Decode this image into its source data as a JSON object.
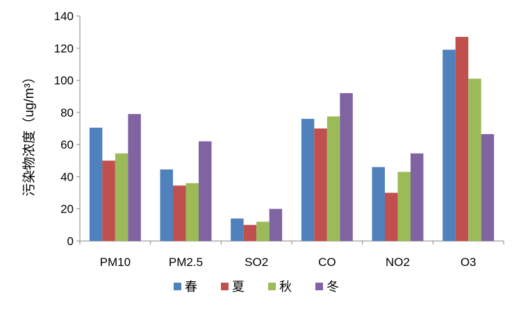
{
  "chart_data": {
    "type": "bar",
    "title": "",
    "xlabel": "",
    "ylabel": "污染物浓度（ug/m³）",
    "ylim": [
      0,
      140
    ],
    "yticks": [
      0,
      20,
      40,
      60,
      80,
      100,
      120,
      140
    ],
    "categories": [
      "PM10",
      "PM2.5",
      "SO2",
      "CO",
      "NO2",
      "O3"
    ],
    "series": [
      {
        "name": "春",
        "color": "#4f81bd",
        "values": [
          70.5,
          44.5,
          14,
          76,
          46,
          119
        ]
      },
      {
        "name": "夏",
        "color": "#c0504d",
        "values": [
          50,
          34.5,
          10,
          70,
          30,
          127
        ]
      },
      {
        "name": "秋",
        "color": "#9bbb59",
        "values": [
          54.5,
          36,
          12,
          77.5,
          43,
          101
        ]
      },
      {
        "name": "冬",
        "color": "#8064a2",
        "values": [
          79,
          62,
          20,
          92,
          54.5,
          66.5
        ]
      }
    ],
    "grid": false,
    "legend_position": "bottom"
  }
}
